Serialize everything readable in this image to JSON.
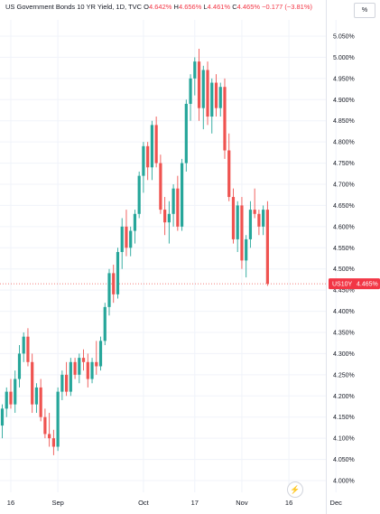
{
  "header": {
    "title": "US Government Bonds 10 YR Yield, 1D, TVC",
    "open_prefix": "O",
    "open": "4.642%",
    "high_prefix": "H",
    "high": "4.656%",
    "low_prefix": "L",
    "low": "4.461%",
    "close_prefix": "C",
    "close": "4.465%",
    "change": "−0.177 (−3.81%)"
  },
  "controls": {
    "percent_label": "%",
    "flash_icon": "lightning-icon"
  },
  "price_tag": {
    "symbol": "US10Y",
    "value": "4.465%"
  },
  "colors": {
    "up": "#26a69a",
    "down": "#ef5350",
    "grid": "#f0f3fa",
    "tag_bg": "#f23645",
    "text": "#131722"
  },
  "chart_data": {
    "type": "candlestick",
    "y_ticks": [
      "4.000%",
      "4.050%",
      "4.100%",
      "4.150%",
      "4.200%",
      "4.250%",
      "4.300%",
      "4.350%",
      "4.400%",
      "4.450%",
      "4.500%",
      "4.550%",
      "4.600%",
      "4.650%",
      "4.700%",
      "4.750%",
      "4.800%",
      "4.850%",
      "4.900%",
      "4.950%",
      "5.000%",
      "5.050%"
    ],
    "ylim": [
      3.98,
      5.08
    ],
    "x_ticks": [
      {
        "label": "16",
        "index": 2
      },
      {
        "label": "Sep",
        "index": 13
      },
      {
        "label": "Oct",
        "index": 33
      },
      {
        "label": "17",
        "index": 45
      },
      {
        "label": "Nov",
        "index": 56
      },
      {
        "label": "16",
        "index": 67
      },
      {
        "label": "Dec",
        "index": 78
      }
    ],
    "total_slots": 81,
    "last_price": 4.465,
    "candles": [
      [
        4.13,
        4.18,
        4.1,
        4.17
      ],
      [
        4.17,
        4.22,
        4.15,
        4.21
      ],
      [
        4.21,
        4.24,
        4.17,
        4.18
      ],
      [
        4.18,
        4.26,
        4.16,
        4.24
      ],
      [
        4.24,
        4.32,
        4.22,
        4.3
      ],
      [
        4.3,
        4.35,
        4.28,
        4.34
      ],
      [
        4.34,
        4.36,
        4.27,
        4.28
      ],
      [
        4.28,
        4.3,
        4.16,
        4.18
      ],
      [
        4.18,
        4.23,
        4.16,
        4.22
      ],
      [
        4.22,
        4.24,
        4.14,
        4.15
      ],
      [
        4.15,
        4.17,
        4.1,
        4.11
      ],
      [
        4.11,
        4.16,
        4.08,
        4.1
      ],
      [
        4.1,
        4.12,
        4.06,
        4.08
      ],
      [
        4.08,
        4.22,
        4.07,
        4.21
      ],
      [
        4.21,
        4.26,
        4.19,
        4.25
      ],
      [
        4.25,
        4.28,
        4.2,
        4.21
      ],
      [
        4.21,
        4.29,
        4.2,
        4.28
      ],
      [
        4.28,
        4.29,
        4.24,
        4.25
      ],
      [
        4.25,
        4.3,
        4.23,
        4.29
      ],
      [
        4.29,
        4.31,
        4.26,
        4.28
      ],
      [
        4.28,
        4.3,
        4.22,
        4.24
      ],
      [
        4.24,
        4.29,
        4.23,
        4.28
      ],
      [
        4.28,
        4.33,
        4.25,
        4.27
      ],
      [
        4.27,
        4.34,
        4.26,
        4.33
      ],
      [
        4.33,
        4.42,
        4.32,
        4.41
      ],
      [
        4.41,
        4.5,
        4.39,
        4.49
      ],
      [
        4.49,
        4.51,
        4.42,
        4.44
      ],
      [
        4.44,
        4.55,
        4.43,
        4.54
      ],
      [
        4.54,
        4.62,
        4.5,
        4.6
      ],
      [
        4.6,
        4.64,
        4.53,
        4.55
      ],
      [
        4.55,
        4.6,
        4.53,
        4.59
      ],
      [
        4.59,
        4.64,
        4.56,
        4.63
      ],
      [
        4.63,
        4.73,
        4.62,
        4.72
      ],
      [
        4.72,
        4.8,
        4.68,
        4.79
      ],
      [
        4.79,
        4.8,
        4.71,
        4.74
      ],
      [
        4.74,
        4.85,
        4.71,
        4.84
      ],
      [
        4.84,
        4.86,
        4.74,
        4.75
      ],
      [
        4.75,
        4.77,
        4.63,
        4.64
      ],
      [
        4.64,
        4.67,
        4.58,
        4.61
      ],
      [
        4.61,
        4.66,
        4.56,
        4.63
      ],
      [
        4.63,
        4.7,
        4.6,
        4.69
      ],
      [
        4.69,
        4.72,
        4.59,
        4.6
      ],
      [
        4.6,
        4.76,
        4.59,
        4.75
      ],
      [
        4.75,
        4.9,
        4.73,
        4.89
      ],
      [
        4.89,
        4.96,
        4.85,
        4.95
      ],
      [
        4.95,
        5.0,
        4.91,
        4.99
      ],
      [
        4.99,
        5.02,
        4.85,
        4.88
      ],
      [
        4.88,
        4.98,
        4.83,
        4.97
      ],
      [
        4.97,
        4.99,
        4.84,
        4.86
      ],
      [
        4.86,
        4.95,
        4.82,
        4.94
      ],
      [
        4.94,
        4.96,
        4.86,
        4.88
      ],
      [
        4.88,
        4.94,
        4.86,
        4.93
      ],
      [
        4.93,
        4.95,
        4.76,
        4.78
      ],
      [
        4.78,
        4.82,
        4.66,
        4.67
      ],
      [
        4.67,
        4.69,
        4.56,
        4.57
      ],
      [
        4.57,
        4.66,
        4.54,
        4.65
      ],
      [
        4.65,
        4.67,
        4.5,
        4.52
      ],
      [
        4.52,
        4.58,
        4.48,
        4.57
      ],
      [
        4.57,
        4.66,
        4.55,
        4.64
      ],
      [
        4.64,
        4.69,
        4.62,
        4.63
      ],
      [
        4.63,
        4.64,
        4.58,
        4.6
      ],
      [
        4.6,
        4.65,
        4.58,
        4.64
      ],
      [
        4.64,
        4.66,
        4.46,
        4.465
      ]
    ]
  }
}
